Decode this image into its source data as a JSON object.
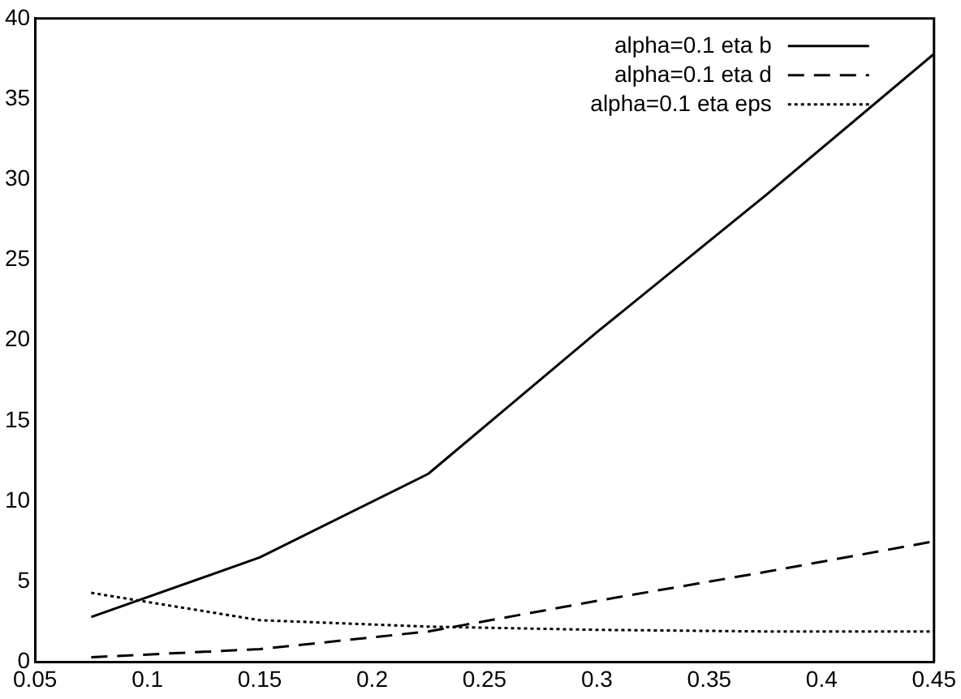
{
  "chart_data": {
    "type": "line",
    "x": [
      0.075,
      0.15,
      0.225,
      0.3,
      0.375,
      0.45
    ],
    "series": [
      {
        "name": "alpha=0.1 eta b",
        "color": "#000000",
        "line_style": "solid",
        "values": [
          2.8,
          6.5,
          11.7,
          20.5,
          29.0,
          37.8
        ]
      },
      {
        "name": "alpha=0.1 eta d",
        "color": "#000000",
        "line_style": "dashed",
        "values": [
          0.3,
          0.8,
          1.9,
          3.8,
          5.6,
          7.5
        ]
      },
      {
        "name": "alpha=0.1 eta eps",
        "color": "#000000",
        "line_style": "dotted",
        "values": [
          4.3,
          2.6,
          2.2,
          2.0,
          1.9,
          1.9
        ]
      }
    ],
    "xlim": [
      0.05,
      0.45
    ],
    "xticks": [
      0.05,
      0.1,
      0.15,
      0.2,
      0.25,
      0.3,
      0.35,
      0.4,
      0.45
    ],
    "ylim": [
      0,
      40
    ],
    "yticks": [
      0,
      5,
      10,
      15,
      20,
      25,
      30,
      35,
      40
    ],
    "grid": false,
    "legend": "top right",
    "marker": "none"
  }
}
